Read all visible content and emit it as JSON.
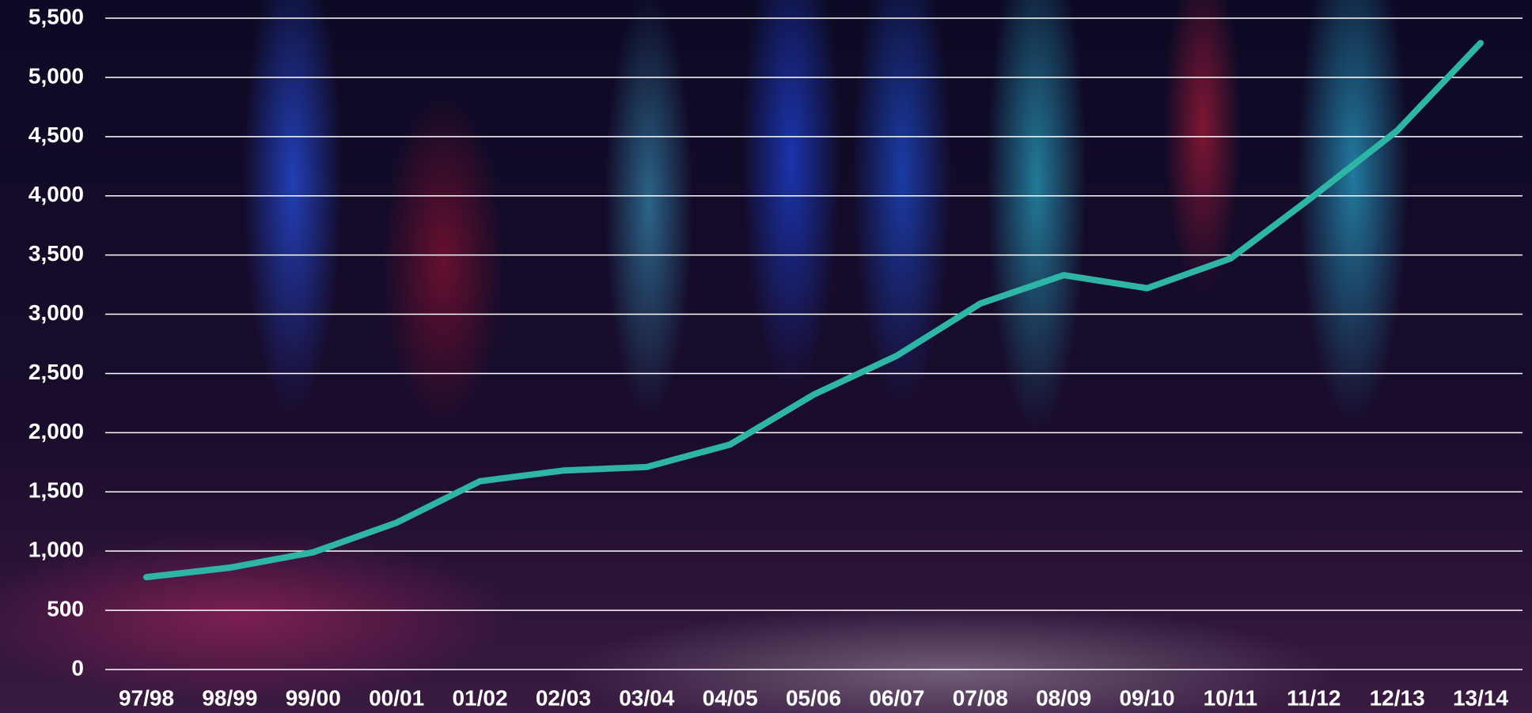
{
  "chart_data": {
    "type": "line",
    "categories": [
      "97/98",
      "98/99",
      "99/00",
      "00/01",
      "01/02",
      "02/03",
      "03/04",
      "04/05",
      "05/06",
      "06/07",
      "07/08",
      "08/09",
      "09/10",
      "10/11",
      "11/12",
      "12/13",
      "13/14"
    ],
    "series": [
      {
        "color": "#2fb5a5",
        "values": [
          780,
          860,
          990,
          1240,
          1590,
          1680,
          1710,
          1900,
          2320,
          2650,
          3090,
          3330,
          3220,
          3470,
          4000,
          4550,
          5290
        ]
      }
    ],
    "ylim": [
      0,
      5500
    ],
    "yticks": [
      0,
      500,
      {
        "value": 1000,
        "label": "1,000"
      },
      {
        "value": 1500,
        "label": "1,500"
      },
      {
        "value": 2000,
        "label": "2,000"
      },
      {
        "value": 2500,
        "label": "2,500"
      },
      {
        "value": 3000,
        "label": "3,000"
      },
      {
        "value": 3500,
        "label": "3,500"
      },
      {
        "value": 4000,
        "label": "4,000"
      },
      {
        "value": 4500,
        "label": "4,500"
      },
      {
        "value": 5000,
        "label": "5,000"
      },
      {
        "value": 5500,
        "label": "5,500"
      }
    ],
    "grid": true
  }
}
